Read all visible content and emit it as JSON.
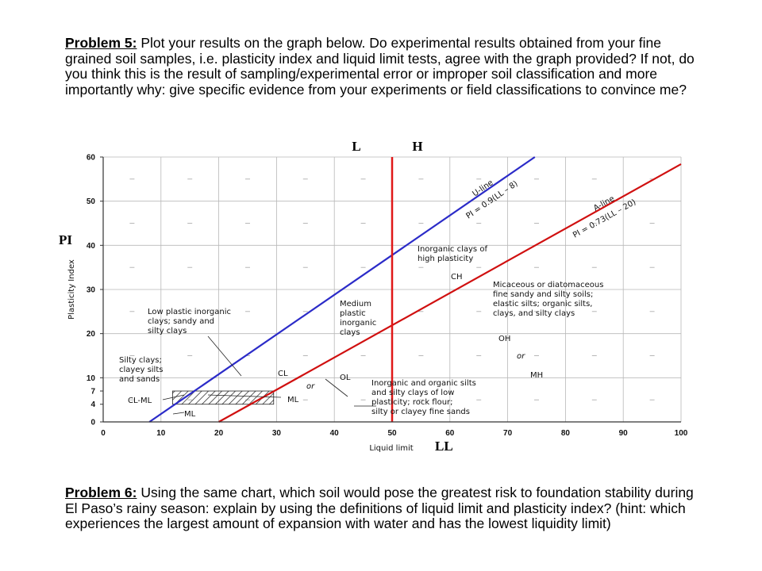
{
  "problem5": {
    "title": "Problem 5:",
    "text": " Plot your results on the graph below.  Do experimental results obtained from your fine grained soil samples, i.e. plasticity index and liquid limit tests, agree with the graph provided?   If not, do you think this is the result of sampling/experimental error or improper soil classification and more importantly why: give specific evidence from your experiments or field classifications to convince me?"
  },
  "problem6": {
    "title": "Problem 6:",
    "text": " Using the same chart, which soil would pose the greatest risk to foundation stability during El Paso’s rainy season: explain by using the definitions of liquid limit and plasticity index? (hint: which experiences the largest amount of expansion with water and has the lowest liquidity limit)"
  },
  "chart_data": {
    "type": "line",
    "xlabel": "Liquid limit",
    "ylabel": "Plasticity Index",
    "xlim": [
      0,
      100
    ],
    "ylim": [
      0,
      60
    ],
    "x_ticks": [
      "0",
      "10",
      "20",
      "30",
      "40",
      "50",
      "60",
      "70",
      "80",
      "90",
      "100"
    ],
    "y_ticks": [
      {
        "value": 0,
        "label": "0"
      },
      {
        "value": 4,
        "label": "4"
      },
      {
        "value": 7,
        "label": "7"
      },
      {
        "value": 10,
        "label": "10"
      },
      {
        "value": 20,
        "label": "20"
      },
      {
        "value": 30,
        "label": "30"
      },
      {
        "value": 40,
        "label": "40"
      },
      {
        "value": 50,
        "label": "50"
      },
      {
        "value": 60,
        "label": "60"
      }
    ],
    "grid": true,
    "series": [
      {
        "name": "U-line",
        "equation": "PI = 0.9(LL – 8)",
        "color": "#2b2bc8",
        "points": [
          [
            8,
            0
          ],
          [
            74.7,
            60
          ]
        ]
      },
      {
        "name": "A-line",
        "equation": "PI = 0.73(LL – 20)",
        "color": "#d01010",
        "points": [
          [
            20,
            0
          ],
          [
            25.5,
            4
          ],
          [
            100,
            58.4
          ]
        ]
      }
    ],
    "vertical_line": {
      "x": 50,
      "color": "#e01818"
    },
    "hatched_zone": {
      "x_range": [
        12,
        29.5
      ],
      "y_range": [
        4,
        7
      ]
    },
    "zone_labels": [
      "CH",
      "CL",
      "OL",
      "ML",
      "OH",
      "MH",
      "CL-ML",
      "or",
      "or"
    ],
    "descriptions": {
      "low_plastic": [
        "Low plastic inorganic",
        "clays; sandy and",
        "silty clays"
      ],
      "silty_clays": [
        "Silty clays;",
        "clayey silts",
        "and sands"
      ],
      "medium": [
        "Medium",
        "plastic",
        "inorganic",
        "clays"
      ],
      "high": [
        "Inorganic clays of",
        "high plasticity"
      ],
      "micaceous": [
        "Micaceous or diatomaceous",
        "fine sandy and silty soils;",
        "elastic silts; organic silts,",
        "clays, and silty clays"
      ],
      "low_plasticity_silts": [
        "Inorganic and organic silts",
        "and silty clays of low",
        "plasticity; rock flour;",
        "silty or clayey fine sands"
      ]
    },
    "handwritten": {
      "L": "L",
      "H": "H",
      "PI": "PI",
      "LL": "LL"
    },
    "colors": {
      "u_line": "#2b2bc8",
      "a_line": "#d01010",
      "divider": "#e01818"
    }
  }
}
